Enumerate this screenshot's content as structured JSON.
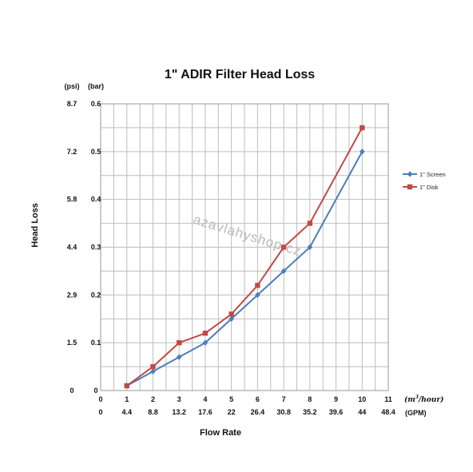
{
  "chart_data": {
    "type": "line",
    "title": "1\" ADIR Filter Head Loss",
    "ylabel": "Head Loss",
    "xlabel": "Flow Rate",
    "y_unit_psi": "(psi)",
    "y_unit_bar": "(bar)",
    "y_ticks_psi": [
      "0",
      "1.5",
      "2.9",
      "4.4",
      "5.8",
      "7.2",
      "8.7"
    ],
    "y_ticks_bar": [
      "0.1",
      "0.2",
      "0.3",
      "0.4",
      "0.5",
      "0.6"
    ],
    "y_tick_bar_values": [
      0.1,
      0.2,
      0.3,
      0.4,
      0.5,
      0.6
    ],
    "ylim": [
      0,
      0.6
    ],
    "x_unit_m3": "(m³/hour)",
    "x_unit_gpm": "(GPM)",
    "x_ticks_m3": [
      "0",
      "1",
      "2",
      "3",
      "4",
      "5",
      "6",
      "7",
      "8",
      "9",
      "10",
      "11"
    ],
    "x_ticks_gpm": [
      "0",
      "4.4",
      "8.8",
      "13.2",
      "17.6",
      "22",
      "26.4",
      "30.8",
      "35.2",
      "39.6",
      "44",
      "48.4"
    ],
    "xlim": [
      0,
      11
    ],
    "grid": true,
    "legend_position": "right",
    "watermark": "azavlahyshop.cz",
    "series": [
      {
        "name": "1\" Screen",
        "color": "#4a7ebb",
        "marker": "diamond",
        "x": [
          1,
          2,
          3,
          4,
          5,
          6,
          7,
          8,
          10
        ],
        "y": [
          0.01,
          0.04,
          0.07,
          0.1,
          0.15,
          0.2,
          0.25,
          0.3,
          0.5
        ]
      },
      {
        "name": "1\" Disk",
        "color": "#be4b48",
        "marker": "square",
        "x": [
          1,
          2,
          3,
          4,
          5,
          6,
          7,
          8,
          10
        ],
        "y": [
          0.01,
          0.05,
          0.1,
          0.12,
          0.16,
          0.22,
          0.3,
          0.35,
          0.55
        ]
      }
    ]
  }
}
